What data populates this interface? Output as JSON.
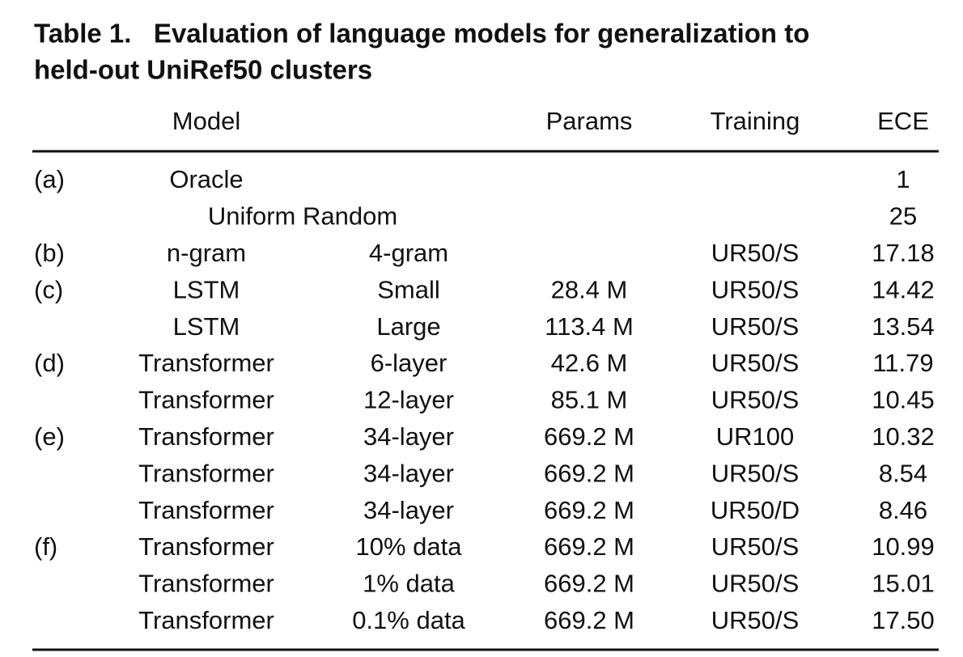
{
  "title": {
    "line1": "Table 1.   Evaluation of language models for generalization to",
    "line2": "held-out UniRef50 clusters"
  },
  "table": {
    "header": {
      "model": "Model",
      "params": "Params",
      "training": "Training",
      "ece": "ECE"
    },
    "rows": [
      {
        "group": "(a)",
        "model": "Oracle",
        "ece": "1"
      },
      {
        "model_span": "Uniform Random",
        "ece": "25"
      },
      {
        "group": "(b)",
        "model": "n-gram",
        "variant": "4-gram",
        "training": "UR50/S",
        "ece": "17.18"
      },
      {
        "group": "(c)",
        "model": "LSTM",
        "variant": "Small",
        "params": "28.4 M",
        "training": "UR50/S",
        "ece": "14.42"
      },
      {
        "model": "LSTM",
        "variant": "Large",
        "params": "113.4 M",
        "training": "UR50/S",
        "ece": "13.54"
      },
      {
        "group": "(d)",
        "model": "Transformer",
        "variant": "6-layer",
        "params": "42.6 M",
        "training": "UR50/S",
        "ece": "11.79"
      },
      {
        "model": "Transformer",
        "variant": "12-layer",
        "params": "85.1 M",
        "training": "UR50/S",
        "ece": "10.45"
      },
      {
        "group": "(e)",
        "model": "Transformer",
        "variant": "34-layer",
        "params": "669.2 M",
        "training": "UR100",
        "ece": "10.32"
      },
      {
        "model": "Transformer",
        "variant": "34-layer",
        "params": "669.2 M",
        "training": "UR50/S",
        "ece": "8.54"
      },
      {
        "model": "Transformer",
        "variant": "34-layer",
        "params": "669.2 M",
        "training": "UR50/D",
        "ece": "8.46"
      },
      {
        "group": "(f)",
        "model": "Transformer",
        "variant": "10% data",
        "params": "669.2 M",
        "training": "UR50/S",
        "ece": "10.99"
      },
      {
        "model": "Transformer",
        "variant": "1% data",
        "params": "669.2 M",
        "training": "UR50/S",
        "ece": "15.01"
      },
      {
        "model": "Transformer",
        "variant": "0.1% data",
        "params": "669.2 M",
        "training": "UR50/S",
        "ece": "17.50"
      }
    ]
  }
}
